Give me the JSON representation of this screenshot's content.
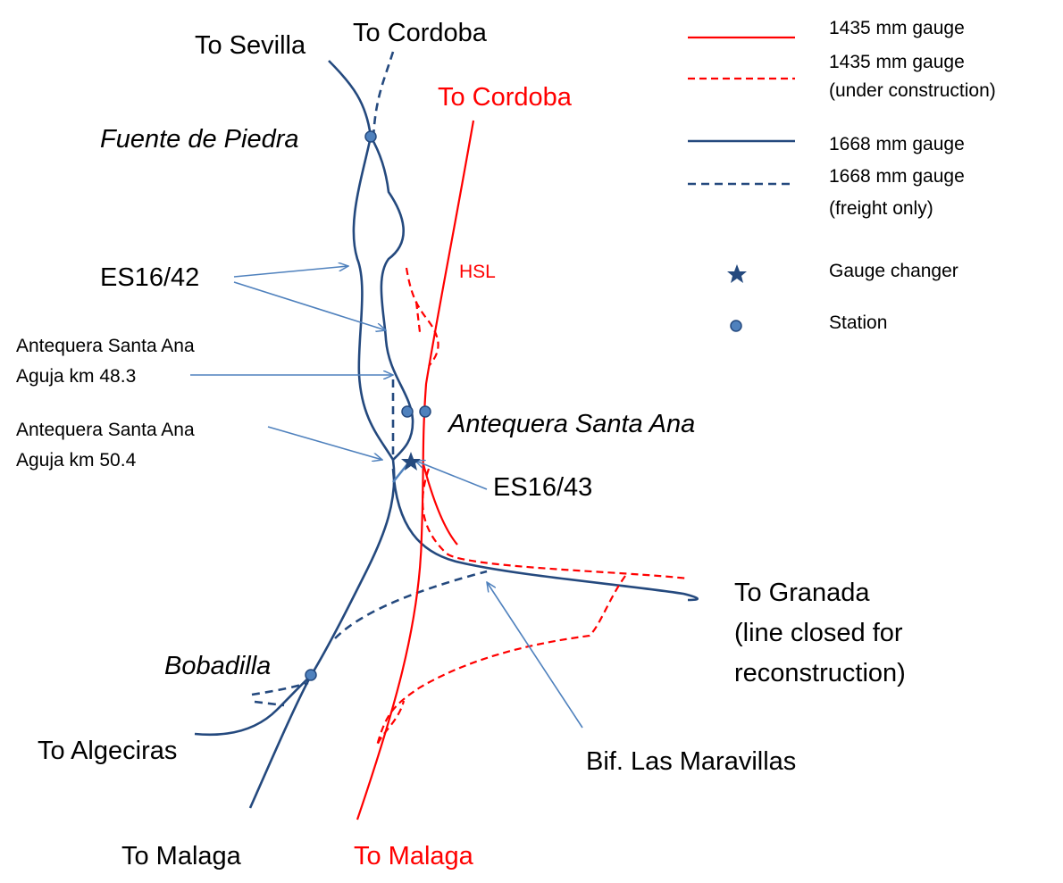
{
  "labels": {
    "to_sevilla": "To Sevilla",
    "to_cordoba_freight": "To Cordoba",
    "to_cordoba_hsl": "To Cordoba",
    "fuente_de_piedra": "Fuente de Piedra",
    "es16_42": "ES16/42",
    "hsl": "HSL",
    "aguja_48": [
      "Antequera Santa Ana",
      "Aguja km 48.3"
    ],
    "aguja_50": [
      "Antequera Santa Ana",
      "Aguja km 50.4"
    ],
    "antequera_santa_ana": "Antequera Santa Ana",
    "es16_43": "ES16/43",
    "to_granada": [
      "To Granada",
      "(line closed for",
      "reconstruction)"
    ],
    "bobadilla": "Bobadilla",
    "to_algeciras": "To Algeciras",
    "bif_las_maravillas": "Bif. Las Maravillas",
    "to_malaga": "To Malaga",
    "to_malaga_hsl": "To Malaga"
  },
  "legend": [
    {
      "label": [
        "1435 mm gauge"
      ]
    },
    {
      "label": [
        "1435 mm gauge",
        "(under construction)"
      ]
    },
    {
      "label": [
        "1668 mm gauge"
      ]
    },
    {
      "label": [
        "1668 mm gauge",
        "(freight only)"
      ]
    },
    {
      "label": [
        "Gauge changer"
      ]
    },
    {
      "label": [
        "Station"
      ]
    }
  ]
}
